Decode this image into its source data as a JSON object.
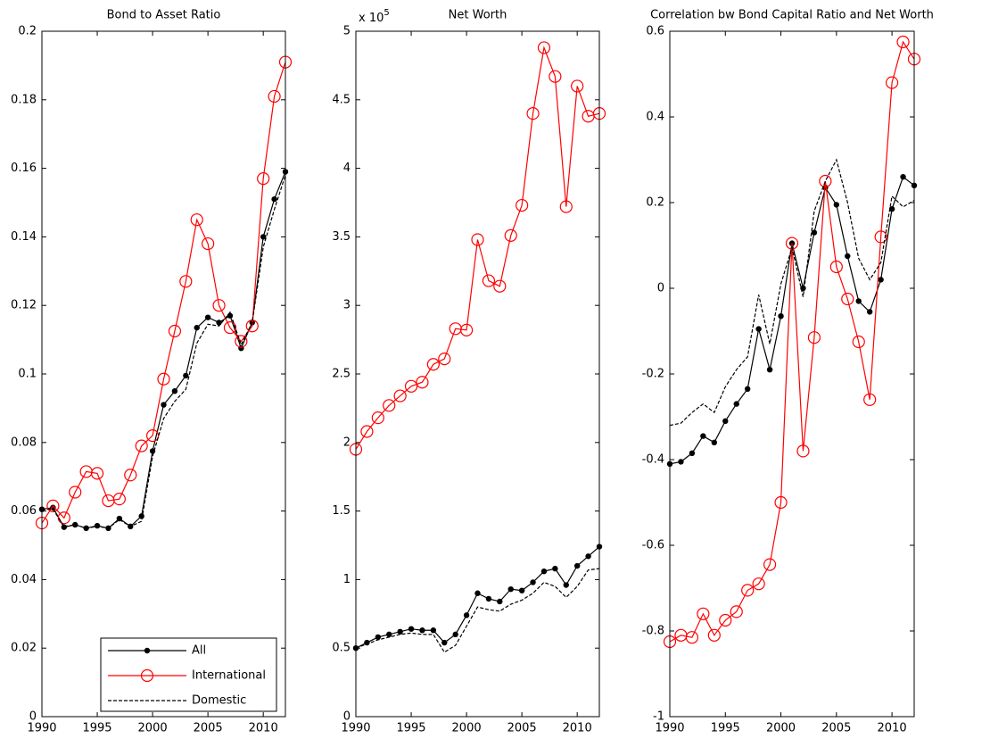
{
  "chart_data": [
    {
      "type": "line",
      "title": "Bond to Asset Ratio",
      "x": [
        1990,
        1991,
        1992,
        1993,
        1994,
        1995,
        1996,
        1997,
        1998,
        1999,
        2000,
        2001,
        2002,
        2003,
        2004,
        2005,
        2006,
        2007,
        2008,
        2009,
        2010,
        2011,
        2012
      ],
      "xlim": [
        1990,
        2012
      ],
      "xticks": [
        1990,
        1995,
        2000,
        2005,
        2010
      ],
      "ylim": [
        0,
        0.2
      ],
      "yticks": [
        0,
        0.02,
        0.04,
        0.06,
        0.08,
        0.1,
        0.12,
        0.14,
        0.16,
        0.18,
        0.2
      ],
      "legend": "lower right",
      "series": [
        {
          "name": "All",
          "color": "#000000",
          "marker": "dot",
          "linestyle": "solid",
          "values": [
            0.0605,
            0.061,
            0.0553,
            0.056,
            0.055,
            0.0557,
            0.055,
            0.0578,
            0.0555,
            0.0585,
            0.0775,
            0.091,
            0.095,
            0.0995,
            0.1135,
            0.1165,
            0.115,
            0.117,
            0.1075,
            0.115,
            0.14,
            0.151,
            0.159
          ]
        },
        {
          "name": "International",
          "color": "#ff0000",
          "marker": "circle",
          "linestyle": "solid",
          "values": [
            0.0565,
            0.0615,
            0.058,
            0.0655,
            0.0715,
            0.071,
            0.063,
            0.0635,
            0.0705,
            0.079,
            0.082,
            0.0985,
            0.1125,
            0.127,
            0.145,
            0.138,
            0.12,
            0.1135,
            0.1095,
            0.114,
            0.157,
            0.181,
            0.191
          ]
        },
        {
          "name": "Domestic",
          "color": "#000000",
          "marker": "none",
          "linestyle": "dashed",
          "values": [
            0.0605,
            0.0605,
            0.0555,
            0.056,
            0.055,
            0.0555,
            0.055,
            0.0575,
            0.0555,
            0.057,
            0.076,
            0.087,
            0.092,
            0.0955,
            0.109,
            0.1145,
            0.114,
            0.118,
            0.1085,
            0.115,
            0.137,
            0.148,
            0.158
          ]
        }
      ]
    },
    {
      "type": "line",
      "title": "Net Worth",
      "y_multiplier": "x 10",
      "y_multiplier_exponent": "5",
      "x": [
        1990,
        1991,
        1992,
        1993,
        1994,
        1995,
        1996,
        1997,
        1998,
        1999,
        2000,
        2001,
        2002,
        2003,
        2004,
        2005,
        2006,
        2007,
        2008,
        2009,
        2010,
        2011,
        2012
      ],
      "xlim": [
        1990,
        2012
      ],
      "xticks": [
        1990,
        1995,
        2000,
        2005,
        2010
      ],
      "ylim": [
        0,
        500000
      ],
      "yticks": [
        0,
        {
          "value": 50000,
          "label": "0.5"
        },
        {
          "value": 100000,
          "label": "1"
        },
        {
          "value": 150000,
          "label": "1.5"
        },
        {
          "value": 200000,
          "label": "2"
        },
        {
          "value": 250000,
          "label": "2.5"
        },
        {
          "value": 300000,
          "label": "3"
        },
        {
          "value": 350000,
          "label": "3.5"
        },
        {
          "value": 400000,
          "label": "4"
        },
        {
          "value": 450000,
          "label": "4.5"
        },
        {
          "value": 500000,
          "label": "5"
        }
      ],
      "series": [
        {
          "name": "All",
          "color": "#000000",
          "marker": "dot",
          "linestyle": "solid",
          "values": [
            50000,
            54000,
            58000,
            60000,
            62000,
            64000,
            63000,
            63000,
            54000,
            60000,
            74000,
            90000,
            86000,
            84000,
            93000,
            92000,
            98000,
            106000,
            108000,
            96000,
            110000,
            117000,
            124000
          ]
        },
        {
          "name": "International",
          "color": "#ff0000",
          "marker": "circle",
          "linestyle": "solid",
          "values": [
            195000,
            208000,
            218000,
            227000,
            234000,
            241000,
            244000,
            257000,
            261000,
            283000,
            282000,
            348000,
            318000,
            314000,
            351000,
            373000,
            440000,
            488000,
            467000,
            372000,
            460000,
            438000,
            440000
          ]
        },
        {
          "name": "Domestic",
          "color": "#000000",
          "marker": "none",
          "linestyle": "dashed",
          "values": [
            50000,
            53000,
            56000,
            58000,
            60000,
            61000,
            60000,
            60000,
            47000,
            52000,
            66000,
            80000,
            78000,
            77000,
            82000,
            85000,
            90000,
            98000,
            95000,
            87000,
            95000,
            107000,
            108000
          ]
        }
      ]
    },
    {
      "type": "line",
      "title": "Correlation bw Bond Capital Ratio and Net Worth",
      "x": [
        1990,
        1991,
        1992,
        1993,
        1994,
        1995,
        1996,
        1997,
        1998,
        1999,
        2000,
        2001,
        2002,
        2003,
        2004,
        2005,
        2006,
        2007,
        2008,
        2009,
        2010,
        2011,
        2012
      ],
      "xlim": [
        1990,
        2012
      ],
      "xticks": [
        1990,
        1995,
        2000,
        2005,
        2010
      ],
      "ylim": [
        -1,
        0.6
      ],
      "yticks": [
        -1,
        -0.8,
        -0.6,
        -0.4,
        -0.2,
        0,
        0.2,
        0.4,
        0.6
      ],
      "series": [
        {
          "name": "All",
          "color": "#000000",
          "marker": "dot",
          "linestyle": "solid",
          "values": [
            -0.41,
            -0.405,
            -0.385,
            -0.345,
            -0.36,
            -0.31,
            -0.27,
            -0.235,
            -0.095,
            -0.19,
            -0.065,
            0.105,
            0.0,
            0.13,
            0.235,
            0.195,
            0.075,
            -0.03,
            -0.055,
            0.02,
            0.185,
            0.26,
            0.24
          ]
        },
        {
          "name": "International",
          "color": "#ff0000",
          "marker": "circle",
          "linestyle": "solid",
          "values": [
            -0.825,
            -0.81,
            -0.815,
            -0.76,
            -0.81,
            -0.775,
            -0.755,
            -0.705,
            -0.69,
            -0.645,
            -0.5,
            0.105,
            -0.38,
            -0.115,
            0.25,
            0.05,
            -0.025,
            -0.125,
            -0.26,
            0.12,
            0.48,
            0.575,
            0.535
          ]
        },
        {
          "name": "Domestic",
          "color": "#000000",
          "marker": "none",
          "linestyle": "dashed",
          "values": [
            -0.32,
            -0.315,
            -0.29,
            -0.27,
            -0.29,
            -0.23,
            -0.19,
            -0.16,
            -0.015,
            -0.13,
            0.01,
            0.095,
            -0.02,
            0.18,
            0.25,
            0.3,
            0.2,
            0.07,
            0.02,
            0.06,
            0.215,
            0.19,
            0.205
          ]
        }
      ]
    }
  ]
}
